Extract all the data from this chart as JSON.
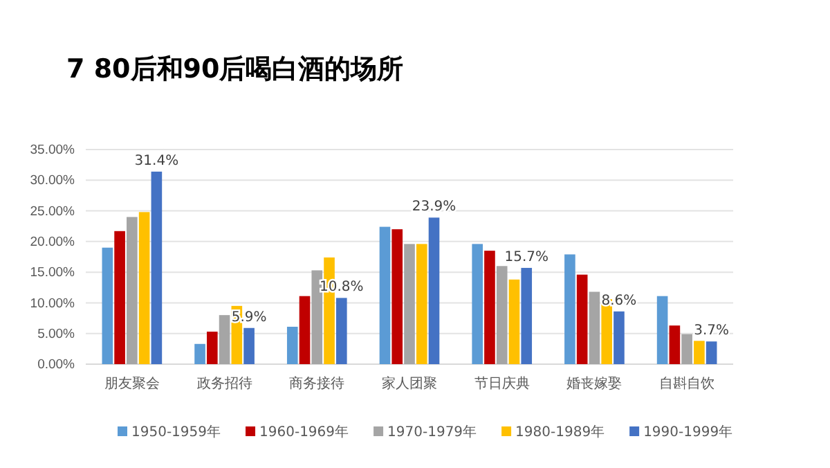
{
  "chart_data": {
    "type": "bar",
    "title": "7 80后和90后喝白酒的场所",
    "categories": [
      "朋友聚会",
      "政务招待",
      "商务接待",
      "家人团聚",
      "节日庆典",
      "婚丧嫁娶",
      "自斟自饮"
    ],
    "series": [
      {
        "name": "1950-1959年",
        "color": "#5b9bd5",
        "values": [
          19.0,
          3.3,
          6.1,
          22.4,
          19.6,
          17.9,
          11.1
        ]
      },
      {
        "name": "1960-1969年",
        "color": "#c00000",
        "values": [
          21.7,
          5.3,
          11.1,
          22.0,
          18.5,
          14.6,
          6.3
        ]
      },
      {
        "name": "1970-1979年",
        "color": "#a5a5a5",
        "values": [
          24.0,
          8.0,
          15.3,
          19.6,
          16.0,
          11.8,
          4.9
        ]
      },
      {
        "name": "1980-1989年",
        "color": "#ffc000",
        "values": [
          24.8,
          9.5,
          17.4,
          19.6,
          13.8,
          10.6,
          3.8
        ]
      },
      {
        "name": "1990-1999年",
        "color": "#4472c4",
        "values": [
          31.4,
          5.9,
          10.8,
          23.9,
          15.7,
          8.6,
          3.7
        ],
        "value_labels": [
          "31.4%",
          "5.9%",
          "10.8%",
          "23.9%",
          "15.7%",
          "8.6%",
          "3.7%"
        ]
      }
    ],
    "ylim": [
      0,
      35
    ],
    "yticks": [
      {
        "value": 0,
        "label": "0.00%"
      },
      {
        "value": 5,
        "label": "5.00%"
      },
      {
        "value": 10,
        "label": "10.00%"
      },
      {
        "value": 15,
        "label": "15.00%"
      },
      {
        "value": 20,
        "label": "20.00%"
      },
      {
        "value": 25,
        "label": "25.00%"
      },
      {
        "value": 30,
        "label": "30.00%"
      },
      {
        "value": 35,
        "label": "35.00%"
      }
    ],
    "grid": "y",
    "legend": "bottom"
  }
}
